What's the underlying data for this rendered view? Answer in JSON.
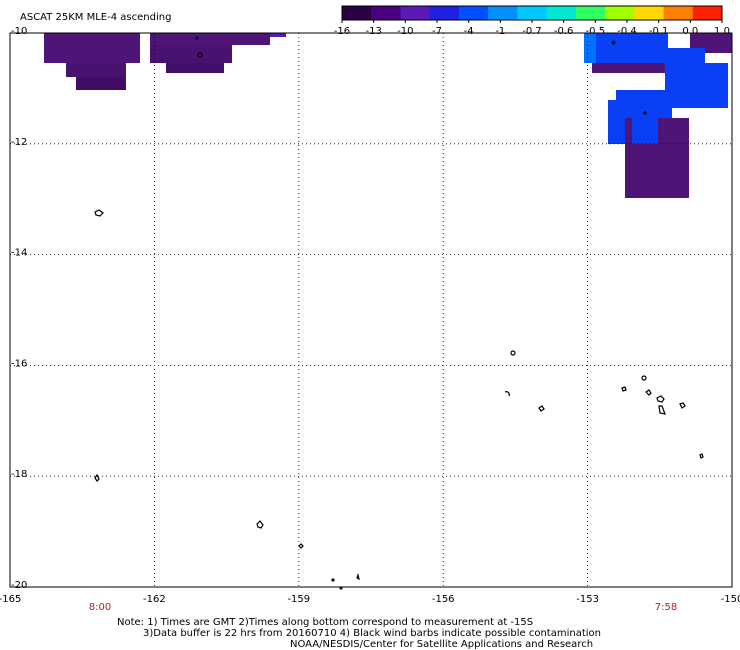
{
  "title": "ASCAT 25KM MLE-4 ascending",
  "colorbar": {
    "labels": [
      "-16",
      "-13",
      "-10",
      "-7",
      "-4",
      "-1",
      "-0.7",
      "-0.6",
      "-0.5",
      "-0.4",
      "-0.1",
      "0.0",
      "1.0"
    ],
    "colors": [
      "#2a0040",
      "#4b0082",
      "#5a1ab5",
      "#2020e0",
      "#0050ff",
      "#0090ff",
      "#00c8ff",
      "#00e8d0",
      "#30ff60",
      "#a0ff00",
      "#ffd800",
      "#ff8000",
      "#ff2000"
    ]
  },
  "map": {
    "lon_range": [
      -165,
      -150
    ],
    "lat_range": [
      -20,
      -10
    ],
    "lon_ticks": [
      "-165",
      "-162",
      "-159",
      "-156",
      "-153",
      "-150"
    ],
    "lat_ticks": [
      "-10",
      "-12",
      "-14",
      "-16",
      "-18",
      "-20"
    ],
    "time_labels": [
      "8:00",
      "7:58"
    ]
  },
  "colors": {
    "purple": "#4f1478",
    "purple_dark": "#3f0d63",
    "blue": "#0a40f5",
    "blue_light": "#0070ff",
    "time_red": "#b22222"
  },
  "notes": [
    "Note: 1) Times are GMT 2)Times along bottom correspond to measurement at -15S",
    "3)Data buffer is 22 hrs from 20160710 4) Black wind barbs indicate possible contamination",
    "NOAA/NESDIS/Center for Satellite Applications and Research"
  ]
}
